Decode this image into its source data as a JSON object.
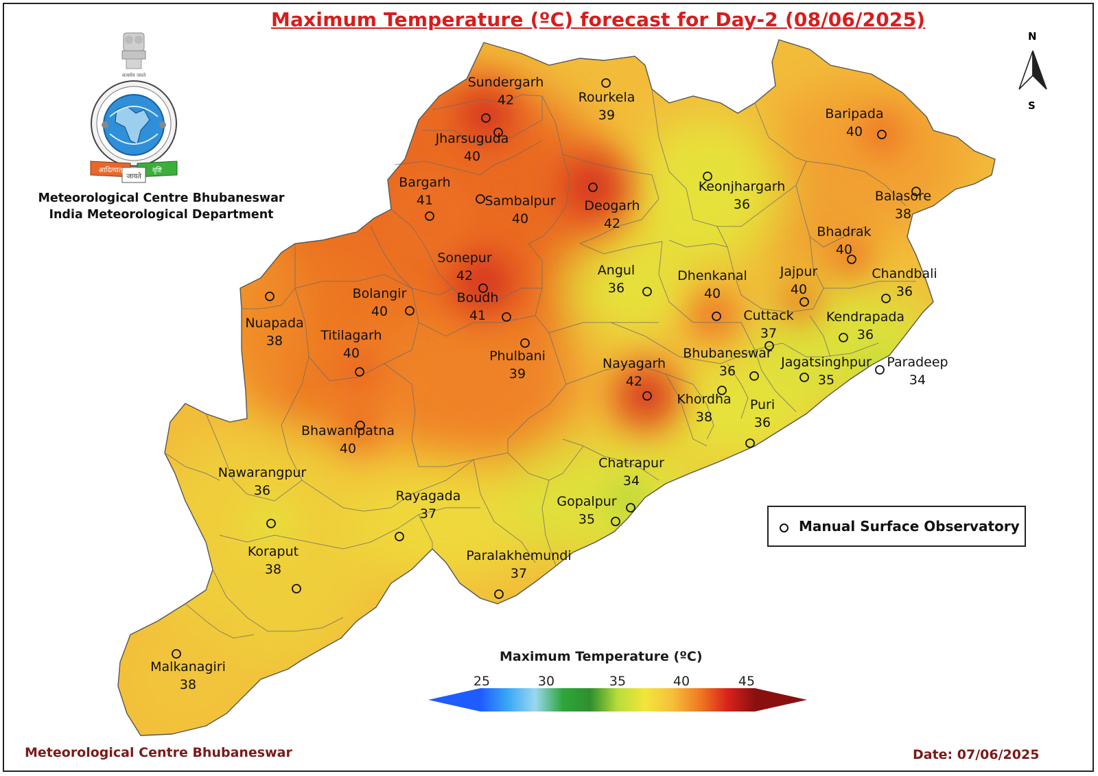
{
  "title": "Maximum Temperature (ºC) forecast for Day-2 (08/06/2025)",
  "organization": {
    "line1": "Meteorological Centre Bhubaneswar",
    "line2": "India Meteorological Department"
  },
  "footer": {
    "left": "Meteorological Centre Bhubaneswar",
    "right": "Date: 07/06/2025"
  },
  "legend": {
    "marker_label": "Manual Surface Observatory"
  },
  "color_scale": {
    "title": "Maximum Temperature (ºC)",
    "ticks": [
      "25",
      "30",
      "35",
      "40",
      "45"
    ],
    "min": 25,
    "max": 45,
    "colors": [
      "#1f5cff",
      "#3aa8f5",
      "#9ad7f0",
      "#2ea63a",
      "#2f8f2f",
      "#b8dc3a",
      "#f2e63a",
      "#f5c03a",
      "#ef7a22",
      "#d9231a",
      "#8a1010"
    ]
  },
  "compass": {
    "north": "N",
    "south": "S"
  },
  "stations": [
    {
      "name": "Sundergarh",
      "value": "42"
    },
    {
      "name": "Rourkela",
      "value": "39"
    },
    {
      "name": "Jharsuguda",
      "value": "40"
    },
    {
      "name": "Baripada",
      "value": "40"
    },
    {
      "name": "Bargarh",
      "value": "41"
    },
    {
      "name": "Sambalpur",
      "value": "40"
    },
    {
      "name": "Deogarh",
      "value": "42"
    },
    {
      "name": "Keonjhargarh",
      "value": "36"
    },
    {
      "name": "Balasore",
      "value": "38"
    },
    {
      "name": "Bhadrak",
      "value": "40"
    },
    {
      "name": "Sonepur",
      "value": "42"
    },
    {
      "name": "Angul",
      "value": "36"
    },
    {
      "name": "Dhenkanal",
      "value": "40"
    },
    {
      "name": "Jajpur",
      "value": "40"
    },
    {
      "name": "Chandbali",
      "value": "36"
    },
    {
      "name": "Bolangir",
      "value": "40"
    },
    {
      "name": "Boudh",
      "value": "41"
    },
    {
      "name": "Nuapada",
      "value": "38"
    },
    {
      "name": "Cuttack",
      "value": "37"
    },
    {
      "name": "Kendrapada",
      "value": "36"
    },
    {
      "name": "Titilagarh",
      "value": "40"
    },
    {
      "name": "Phulbani",
      "value": "39"
    },
    {
      "name": "Bhubaneswar",
      "value": "36"
    },
    {
      "name": "Jagatsinghpur",
      "value": "35"
    },
    {
      "name": "Paradeep",
      "value": "34"
    },
    {
      "name": "Nayagarh",
      "value": "42"
    },
    {
      "name": "Khordha",
      "value": "38"
    },
    {
      "name": "Puri",
      "value": "36"
    },
    {
      "name": "Bhawanipatna",
      "value": "40"
    },
    {
      "name": "Chatrapur",
      "value": "34"
    },
    {
      "name": "Nawarangpur",
      "value": "36"
    },
    {
      "name": "Gopalpur",
      "value": "35"
    },
    {
      "name": "Rayagada",
      "value": "37"
    },
    {
      "name": "Koraput",
      "value": "38"
    },
    {
      "name": "Paralakhemundi",
      "value": "37"
    },
    {
      "name": "Malkanagiri",
      "value": "38"
    }
  ]
}
